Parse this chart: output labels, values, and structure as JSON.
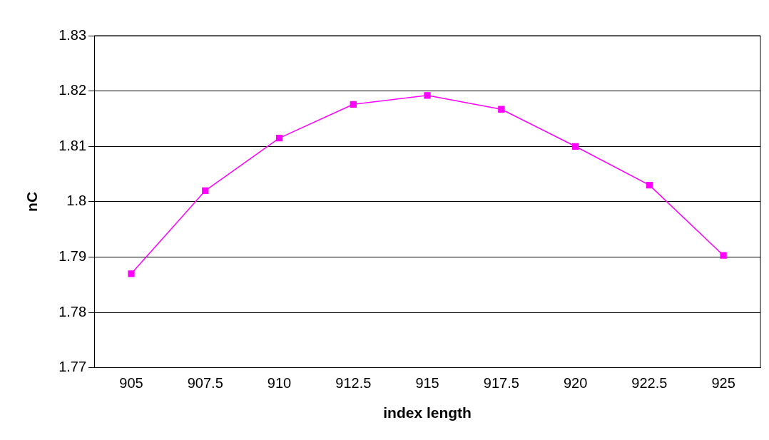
{
  "chart_data": {
    "type": "line",
    "xlabel": "index length",
    "ylabel": "nC",
    "categories": [
      "905",
      "907.5",
      "910",
      "912.5",
      "915",
      "917.5",
      "920",
      "922.5",
      "925"
    ],
    "series": [
      {
        "color": "#ff00ff",
        "values": [
          1.787,
          1.802,
          1.8115,
          1.8176,
          1.8192,
          1.8167,
          1.81,
          1.803,
          1.7903
        ]
      }
    ],
    "ylim": [
      1.77,
      1.83
    ],
    "yticks": [
      1.77,
      1.78,
      1.79,
      1.8,
      1.81,
      1.82,
      1.83
    ],
    "grid": "y",
    "legend": false,
    "marker": "square",
    "line_style": "solid"
  }
}
